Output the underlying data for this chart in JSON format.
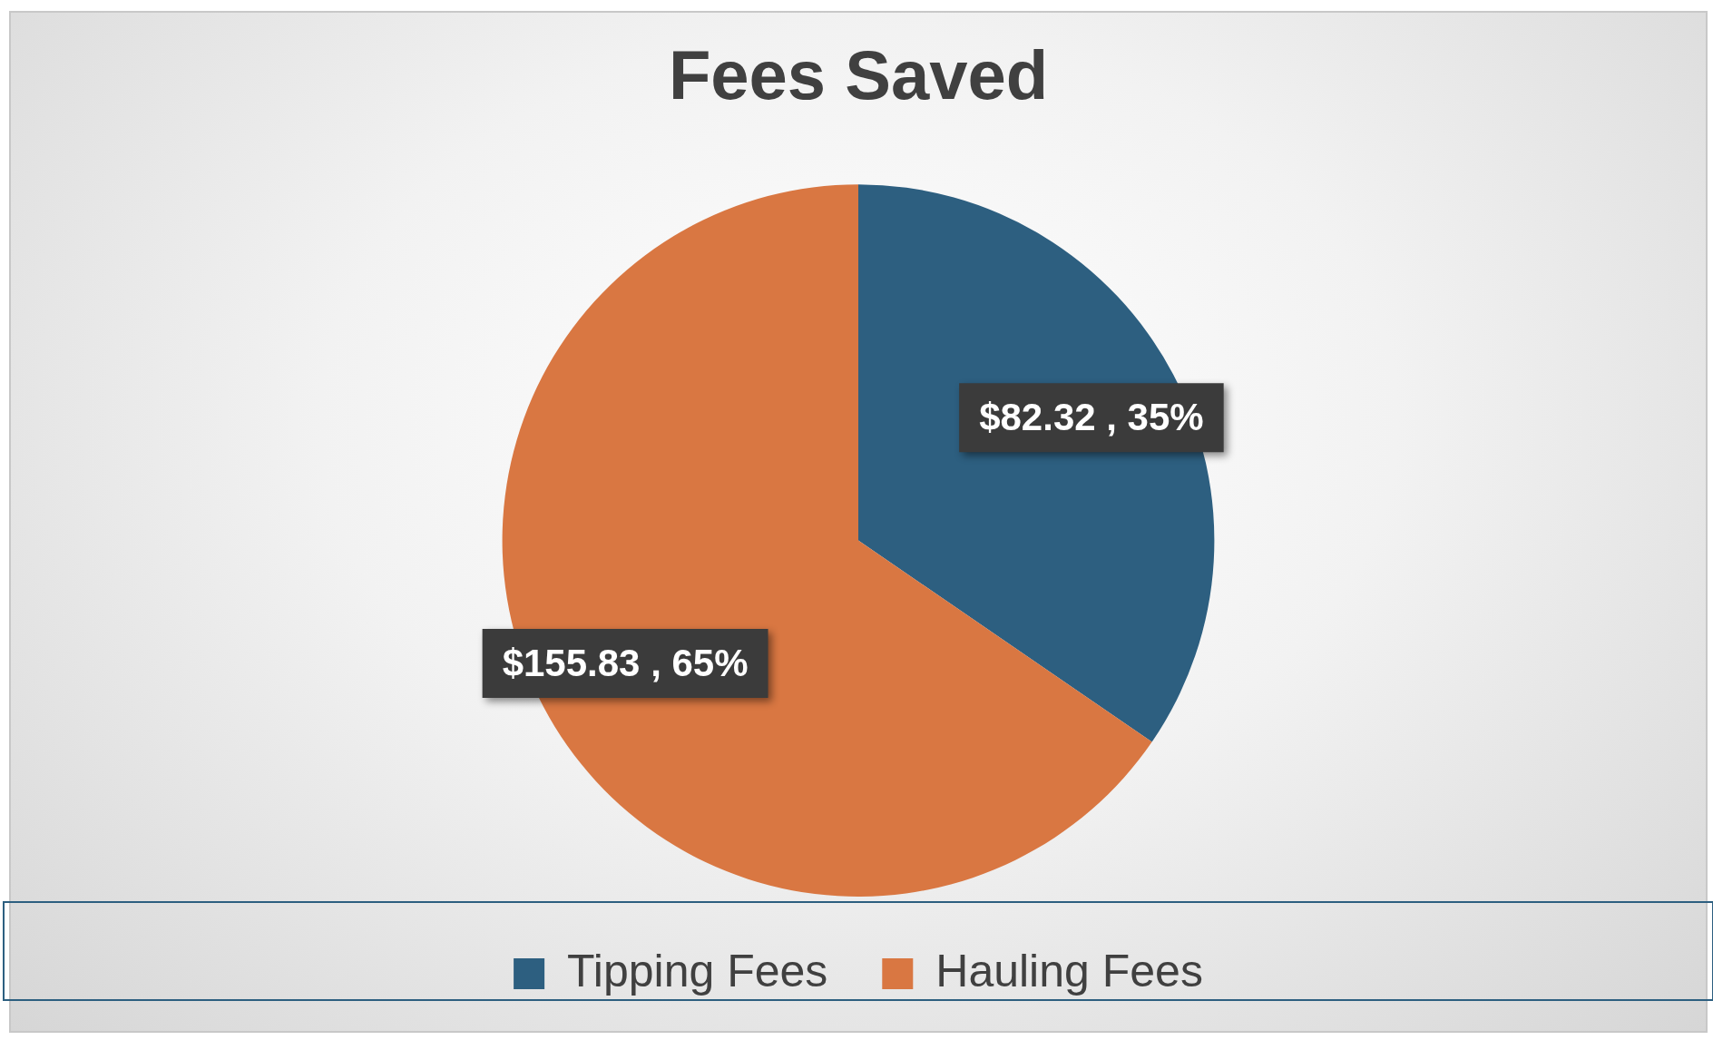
{
  "chart_data": {
    "type": "pie",
    "title": "Fees Saved",
    "categories": [
      "Tipping Fees",
      "Hauling Fees"
    ],
    "values": [
      82.32,
      155.83
    ],
    "colors": [
      "#2d5f80",
      "#d97742"
    ],
    "value_labels": [
      "$82.32 , 35%",
      "$155.83 , 65%"
    ],
    "legend": "bottom"
  }
}
